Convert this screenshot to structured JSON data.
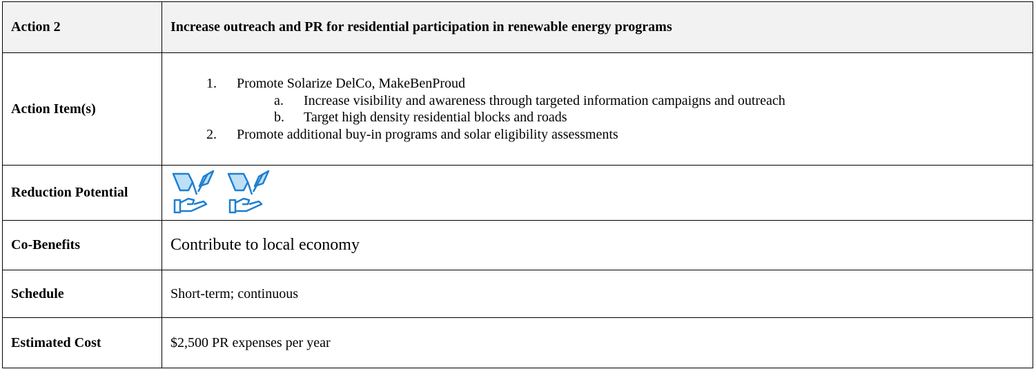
{
  "table": {
    "rows": [
      {
        "label": "Action 2",
        "text": "Increase outreach and PR for residential participation in renewable energy programs"
      },
      {
        "label": "Action Item(s)",
        "items": [
          {
            "marker": "1.",
            "text": "Promote Solarize DelCo, MakeBenProud",
            "subitems": [
              {
                "marker": "a.",
                "text": "Increase visibility and awareness through targeted information campaigns and outreach"
              },
              {
                "marker": "b.",
                "text": "Target high density residential blocks and roads"
              }
            ]
          },
          {
            "marker": "2.",
            "text": "Promote additional buy-in programs and solar eligibility assessments"
          }
        ]
      },
      {
        "label": "Reduction Potential"
      },
      {
        "label": "Co-Benefits",
        "text": "Contribute to local economy"
      },
      {
        "label": "Schedule",
        "text": "Short-term; continuous"
      },
      {
        "label": "Estimated Cost",
        "text": "$2,500 PR expenses per year"
      }
    ]
  }
}
